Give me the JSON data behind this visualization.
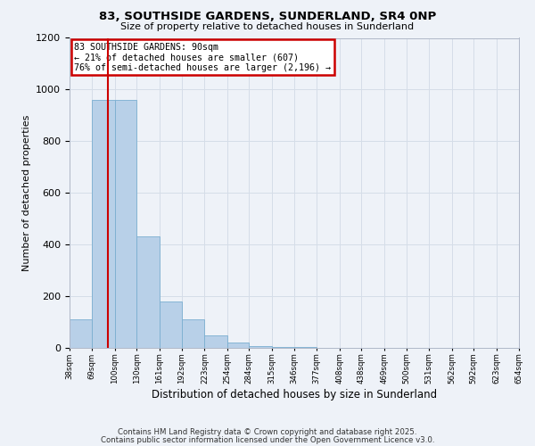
{
  "title1": "83, SOUTHSIDE GARDENS, SUNDERLAND, SR4 0NP",
  "title2": "Size of property relative to detached houses in Sunderland",
  "xlabel": "Distribution of detached houses by size in Sunderland",
  "ylabel": "Number of detached properties",
  "bar_values": [
    110,
    960,
    960,
    430,
    180,
    110,
    50,
    20,
    8,
    4,
    2,
    1,
    1,
    0,
    0,
    0,
    0,
    0,
    0,
    0
  ],
  "bin_edges": [
    38,
    69,
    100,
    130,
    161,
    192,
    223,
    254,
    284,
    315,
    346,
    377,
    408,
    438,
    469,
    500,
    531,
    562,
    592,
    623,
    654
  ],
  "bar_color": "#b8d0e8",
  "bar_edge_color": "#7aaed0",
  "vline_x": 90,
  "vline_color": "#cc0000",
  "annotation_line1": "83 SOUTHSIDE GARDENS: 90sqm",
  "annotation_line2": "← 21% of detached houses are smaller (607)",
  "annotation_line3": "76% of semi-detached houses are larger (2,196) →",
  "annotation_box_color": "#cc0000",
  "annotation_bg": "white",
  "ylim": [
    0,
    1200
  ],
  "yticks": [
    0,
    200,
    400,
    600,
    800,
    1000,
    1200
  ],
  "x_tick_labels": [
    "38sqm",
    "69sqm",
    "100sqm",
    "130sqm",
    "161sqm",
    "192sqm",
    "223sqm",
    "254sqm",
    "284sqm",
    "315sqm",
    "346sqm",
    "377sqm",
    "408sqm",
    "438sqm",
    "469sqm",
    "500sqm",
    "531sqm",
    "562sqm",
    "592sqm",
    "623sqm",
    "654sqm"
  ],
  "grid_color": "#d5dde8",
  "background_color": "#eef2f8",
  "footnote1": "Contains HM Land Registry data © Crown copyright and database right 2025.",
  "footnote2": "Contains public sector information licensed under the Open Government Licence v3.0."
}
